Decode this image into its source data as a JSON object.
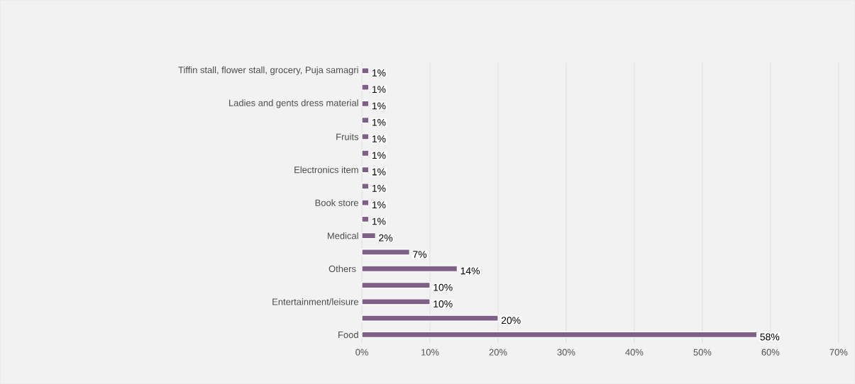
{
  "chart_data": {
    "type": "bar",
    "orientation": "horizontal",
    "categories": [
      "Tiffin stall, flower stall, grocery, Puja samagri",
      null,
      "Ladies and gents dress material",
      null,
      "Fruits",
      null,
      "Electronics item",
      null,
      "Book store",
      null,
      "Medical",
      null,
      "Others ",
      null,
      "Entertainment/leisure",
      null,
      "Food"
    ],
    "values": [
      1,
      1,
      1,
      1,
      1,
      1,
      1,
      1,
      1,
      1,
      2,
      7,
      14,
      10,
      10,
      20,
      58
    ],
    "value_labels": [
      "1%",
      "1%",
      "1%",
      "1%",
      "1%",
      "1%",
      "1%",
      "1%",
      "1%",
      "1%",
      "2%",
      "7%",
      "14%",
      "10%",
      "10%",
      "20%",
      "58%"
    ],
    "color": "#7f5f88",
    "xlim": [
      0,
      70
    ],
    "xticks": [
      {
        "value": 0,
        "label": "0%"
      },
      {
        "value": 10,
        "label": "10%"
      },
      {
        "value": 20,
        "label": "20%"
      },
      {
        "value": 30,
        "label": "30%"
      },
      {
        "value": 40,
        "label": "40%"
      },
      {
        "value": 50,
        "label": "50%"
      },
      {
        "value": 60,
        "label": "60%"
      },
      {
        "value": 70,
        "label": "70%"
      }
    ],
    "grid": "x"
  }
}
